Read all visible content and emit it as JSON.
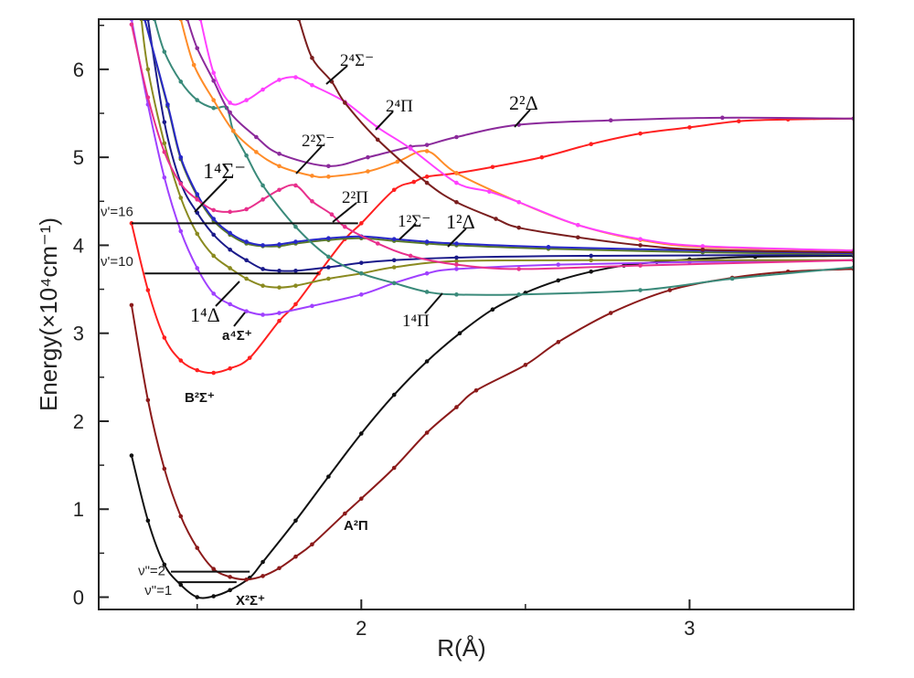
{
  "chart_data": {
    "type": "line",
    "xlabel": "R(Å)",
    "ylabel": "Energy(×10⁴cm⁻¹)",
    "xlim": [
      1.2,
      3.5
    ],
    "ylim": [
      -0.14,
      6.57
    ],
    "xticks": [
      {
        "value": 2,
        "label": "2"
      },
      {
        "value": 3,
        "label": "3"
      }
    ],
    "xminor": [
      1.5,
      2.5
    ],
    "yticks": [
      {
        "value": 0,
        "label": "0"
      },
      {
        "value": 1,
        "label": "1"
      },
      {
        "value": 2,
        "label": "2"
      },
      {
        "value": 3,
        "label": "3"
      },
      {
        "value": 4,
        "label": "4"
      },
      {
        "value": 5,
        "label": "5"
      },
      {
        "value": 6,
        "label": "6"
      }
    ],
    "yminor": [
      0.5,
      1.5,
      2.5,
      3.5,
      4.5,
      5.5,
      6.5
    ],
    "grid": false,
    "series": [
      {
        "name": "X²Σ⁺",
        "color": "#111111",
        "points": [
          [
            1.3,
            1.61
          ],
          [
            1.35,
            0.87
          ],
          [
            1.4,
            0.37
          ],
          [
            1.45,
            0.14
          ],
          [
            1.5,
            0.0
          ],
          [
            1.55,
            0.01
          ],
          [
            1.6,
            0.08
          ],
          [
            1.66,
            0.22
          ],
          [
            1.7,
            0.4
          ],
          [
            1.8,
            0.87
          ],
          [
            1.9,
            1.37
          ],
          [
            2.0,
            1.86
          ],
          [
            2.1,
            2.3
          ],
          [
            2.2,
            2.68
          ],
          [
            2.3,
            3.0
          ],
          [
            2.4,
            3.27
          ],
          [
            2.5,
            3.46
          ],
          [
            2.6,
            3.6
          ],
          [
            2.7,
            3.7
          ],
          [
            2.8,
            3.77
          ],
          [
            2.9,
            3.81
          ],
          [
            3.0,
            3.84
          ],
          [
            3.2,
            3.87
          ],
          [
            3.5,
            3.88
          ]
        ]
      },
      {
        "name": "A²Π",
        "color": "#8b1a1a",
        "points": [
          [
            1.3,
            3.32
          ],
          [
            1.35,
            2.24
          ],
          [
            1.4,
            1.46
          ],
          [
            1.45,
            0.92
          ],
          [
            1.5,
            0.56
          ],
          [
            1.55,
            0.32
          ],
          [
            1.6,
            0.23
          ],
          [
            1.65,
            0.2
          ],
          [
            1.7,
            0.24
          ],
          [
            1.75,
            0.33
          ],
          [
            1.8,
            0.46
          ],
          [
            1.85,
            0.6
          ],
          [
            1.95,
            0.95
          ],
          [
            2.0,
            1.12
          ],
          [
            2.1,
            1.47
          ],
          [
            2.2,
            1.87
          ],
          [
            2.29,
            2.16
          ],
          [
            2.35,
            2.35
          ],
          [
            2.5,
            2.64
          ],
          [
            2.6,
            2.9
          ],
          [
            2.76,
            3.23
          ],
          [
            2.94,
            3.49
          ],
          [
            3.13,
            3.63
          ],
          [
            3.3,
            3.7
          ],
          [
            3.5,
            3.73
          ]
        ]
      },
      {
        "name": "B²Σ⁺",
        "color": "#ff2020",
        "points": [
          [
            1.3,
            4.25
          ],
          [
            1.35,
            3.49
          ],
          [
            1.4,
            2.95
          ],
          [
            1.45,
            2.69
          ],
          [
            1.5,
            2.58
          ],
          [
            1.55,
            2.55
          ],
          [
            1.6,
            2.6
          ],
          [
            1.66,
            2.72
          ],
          [
            1.75,
            3.14
          ],
          [
            1.8,
            3.33
          ],
          [
            1.87,
            3.68
          ],
          [
            1.95,
            4.07
          ],
          [
            2.0,
            4.25
          ],
          [
            2.1,
            4.63
          ],
          [
            2.16,
            4.72
          ],
          [
            2.2,
            4.78
          ],
          [
            2.29,
            4.82
          ],
          [
            2.4,
            4.89
          ],
          [
            2.55,
            5.0
          ],
          [
            2.7,
            5.15
          ],
          [
            2.85,
            5.27
          ],
          [
            3.0,
            5.34
          ],
          [
            3.15,
            5.41
          ],
          [
            3.3,
            5.43
          ],
          [
            3.5,
            5.44
          ]
        ]
      },
      {
        "name": "a⁴Σ⁺",
        "color": "#a040ff",
        "points": [
          [
            1.3,
            6.57
          ],
          [
            1.35,
            5.6
          ],
          [
            1.4,
            4.77
          ],
          [
            1.45,
            4.16
          ],
          [
            1.5,
            3.74
          ],
          [
            1.55,
            3.45
          ],
          [
            1.6,
            3.33
          ],
          [
            1.65,
            3.25
          ],
          [
            1.7,
            3.21
          ],
          [
            1.75,
            3.23
          ],
          [
            1.85,
            3.31
          ],
          [
            2.0,
            3.44
          ],
          [
            2.1,
            3.57
          ],
          [
            2.2,
            3.68
          ],
          [
            2.29,
            3.73
          ],
          [
            2.6,
            3.78
          ],
          [
            3.0,
            3.81
          ],
          [
            3.5,
            3.83
          ]
        ]
      },
      {
        "name": "1⁴Δ",
        "color": "#8a8a20",
        "points": [
          [
            1.33,
            6.57
          ],
          [
            1.35,
            6.0
          ],
          [
            1.4,
            5.16
          ],
          [
            1.45,
            4.54
          ],
          [
            1.5,
            4.13
          ],
          [
            1.55,
            3.88
          ],
          [
            1.6,
            3.74
          ],
          [
            1.65,
            3.62
          ],
          [
            1.7,
            3.54
          ],
          [
            1.75,
            3.52
          ],
          [
            1.8,
            3.54
          ],
          [
            1.9,
            3.62
          ],
          [
            2.0,
            3.68
          ],
          [
            2.1,
            3.75
          ],
          [
            2.29,
            3.82
          ],
          [
            2.7,
            3.83
          ],
          [
            3.5,
            3.83
          ]
        ]
      },
      {
        "name": "1⁴Σ⁻",
        "color": "#1a1a8a",
        "points": [
          [
            1.35,
            6.57
          ],
          [
            1.4,
            5.4
          ],
          [
            1.45,
            4.71
          ],
          [
            1.5,
            4.37
          ],
          [
            1.55,
            4.12
          ],
          [
            1.6,
            3.95
          ],
          [
            1.65,
            3.83
          ],
          [
            1.7,
            3.73
          ],
          [
            1.75,
            3.71
          ],
          [
            1.8,
            3.71
          ],
          [
            1.9,
            3.75
          ],
          [
            2.0,
            3.8
          ],
          [
            2.1,
            3.83
          ],
          [
            2.29,
            3.86
          ],
          [
            2.7,
            3.88
          ],
          [
            3.5,
            3.89
          ]
        ]
      },
      {
        "name": "1²Δ",
        "color": "#5a7a2a",
        "points": [
          [
            1.34,
            6.57
          ],
          [
            1.41,
            5.58
          ],
          [
            1.45,
            4.98
          ],
          [
            1.5,
            4.56
          ],
          [
            1.55,
            4.28
          ],
          [
            1.6,
            4.12
          ],
          [
            1.65,
            4.02
          ],
          [
            1.7,
            3.99
          ],
          [
            1.75,
            3.99
          ],
          [
            1.8,
            4.02
          ],
          [
            1.9,
            4.06
          ],
          [
            2.0,
            4.08
          ],
          [
            2.1,
            4.05
          ],
          [
            2.2,
            4.02
          ],
          [
            2.29,
            4.0
          ],
          [
            2.57,
            3.96
          ],
          [
            3.04,
            3.92
          ],
          [
            3.5,
            3.9
          ]
        ]
      },
      {
        "name": "1²Σ⁻",
        "color": "#2828c8",
        "points": [
          [
            1.34,
            6.57
          ],
          [
            1.41,
            5.6
          ],
          [
            1.45,
            5.0
          ],
          [
            1.5,
            4.58
          ],
          [
            1.55,
            4.3
          ],
          [
            1.6,
            4.14
          ],
          [
            1.65,
            4.04
          ],
          [
            1.7,
            4.0
          ],
          [
            1.75,
            4.01
          ],
          [
            1.8,
            4.04
          ],
          [
            1.9,
            4.08
          ],
          [
            2.0,
            4.1
          ],
          [
            2.1,
            4.07
          ],
          [
            2.2,
            4.04
          ],
          [
            2.29,
            4.02
          ],
          [
            2.57,
            3.98
          ],
          [
            3.04,
            3.94
          ],
          [
            3.5,
            3.91
          ]
        ]
      },
      {
        "name": "2²Π",
        "color": "#e8308c",
        "points": [
          [
            1.3,
            6.51
          ],
          [
            1.35,
            5.68
          ],
          [
            1.4,
            5.06
          ],
          [
            1.45,
            4.7
          ],
          [
            1.5,
            4.52
          ],
          [
            1.55,
            4.4
          ],
          [
            1.6,
            4.38
          ],
          [
            1.65,
            4.41
          ],
          [
            1.7,
            4.52
          ],
          [
            1.75,
            4.63
          ],
          [
            1.8,
            4.68
          ],
          [
            1.85,
            4.5
          ],
          [
            1.91,
            4.35
          ],
          [
            1.95,
            4.21
          ],
          [
            2.05,
            4.02
          ],
          [
            2.15,
            3.88
          ],
          [
            2.29,
            3.78
          ],
          [
            2.48,
            3.73
          ],
          [
            2.85,
            3.77
          ],
          [
            3.5,
            3.83
          ]
        ]
      },
      {
        "name": "1⁴Π",
        "color": "#3a8a7a",
        "points": [
          [
            1.37,
            6.57
          ],
          [
            1.4,
            6.2
          ],
          [
            1.45,
            5.86
          ],
          [
            1.5,
            5.65
          ],
          [
            1.55,
            5.56
          ],
          [
            1.59,
            5.56
          ],
          [
            1.61,
            5.3
          ],
          [
            1.65,
            5.02
          ],
          [
            1.7,
            4.68
          ],
          [
            1.8,
            4.21
          ],
          [
            1.9,
            3.87
          ],
          [
            2.0,
            3.68
          ],
          [
            2.1,
            3.57
          ],
          [
            2.2,
            3.47
          ],
          [
            2.29,
            3.44
          ],
          [
            2.48,
            3.44
          ],
          [
            2.85,
            3.49
          ],
          [
            3.13,
            3.62
          ],
          [
            3.5,
            3.75
          ]
        ]
      },
      {
        "name": "2²Σ⁻",
        "color": "#ff8c28",
        "points": [
          [
            1.45,
            6.57
          ],
          [
            1.49,
            6.05
          ],
          [
            1.55,
            5.65
          ],
          [
            1.61,
            5.3
          ],
          [
            1.68,
            5.06
          ],
          [
            1.75,
            4.9
          ],
          [
            1.85,
            4.79
          ],
          [
            1.9,
            4.78
          ],
          [
            2.02,
            4.84
          ],
          [
            2.11,
            4.95
          ],
          [
            2.2,
            5.07
          ],
          [
            2.29,
            4.82
          ],
          [
            2.48,
            4.49
          ],
          [
            2.66,
            4.23
          ],
          [
            2.85,
            4.06
          ],
          [
            3.04,
            3.98
          ],
          [
            3.5,
            3.94
          ]
        ]
      },
      {
        "name": "2²Δ",
        "color": "#8b2a9b",
        "points": [
          [
            1.47,
            6.57
          ],
          [
            1.5,
            6.24
          ],
          [
            1.55,
            5.87
          ],
          [
            1.6,
            5.51
          ],
          [
            1.68,
            5.23
          ],
          [
            1.75,
            5.04
          ],
          [
            1.9,
            4.9
          ],
          [
            2.02,
            5.0
          ],
          [
            2.15,
            5.12
          ],
          [
            2.2,
            5.14
          ],
          [
            2.29,
            5.23
          ],
          [
            2.48,
            5.37
          ],
          [
            2.76,
            5.42
          ],
          [
            3.1,
            5.45
          ],
          [
            3.5,
            5.44
          ]
        ]
      },
      {
        "name": "2⁴Π",
        "color": "#ff40ff",
        "points": [
          [
            1.51,
            6.57
          ],
          [
            1.55,
            5.96
          ],
          [
            1.6,
            5.62
          ],
          [
            1.65,
            5.65
          ],
          [
            1.7,
            5.77
          ],
          [
            1.75,
            5.88
          ],
          [
            1.8,
            5.91
          ],
          [
            1.85,
            5.82
          ],
          [
            1.95,
            5.63
          ],
          [
            2.05,
            5.34
          ],
          [
            2.15,
            5.1
          ],
          [
            2.29,
            4.71
          ],
          [
            2.39,
            4.61
          ],
          [
            2.48,
            4.49
          ],
          [
            2.66,
            4.23
          ],
          [
            2.85,
            4.07
          ],
          [
            3.04,
            3.99
          ],
          [
            3.5,
            3.94
          ]
        ]
      },
      {
        "name": "2⁴Σ⁻",
        "color": "#7a1e1e",
        "points": [
          [
            1.81,
            6.57
          ],
          [
            1.85,
            6.13
          ],
          [
            1.91,
            5.86
          ],
          [
            1.95,
            5.62
          ],
          [
            2.05,
            5.2
          ],
          [
            2.2,
            4.71
          ],
          [
            2.29,
            4.49
          ],
          [
            2.41,
            4.3
          ],
          [
            2.48,
            4.2
          ],
          [
            2.66,
            4.09
          ],
          [
            2.85,
            4.0
          ],
          [
            3.04,
            3.95
          ],
          [
            3.5,
            3.92
          ]
        ]
      }
    ],
    "levels": [
      {
        "label": "ν'=16",
        "energy": 4.25,
        "r_start": 1.3,
        "r_end": 1.99
      },
      {
        "label": "ν'=10",
        "energy": 3.68,
        "r_start": 1.34,
        "r_end": 1.87
      },
      {
        "label": "ν\"=2",
        "energy": 0.29,
        "r_start": 1.42,
        "r_end": 1.66
      },
      {
        "label": "ν\"=1",
        "energy": 0.17,
        "r_start": 1.44,
        "r_end": 1.62
      }
    ],
    "annotations": [
      "2⁴Σ⁻",
      "2⁴Π",
      "2²Δ",
      "2²Σ⁻",
      "1⁴Σ⁻",
      "2²Π",
      "1²Σ⁻",
      "1²Δ",
      "1⁴Δ",
      "a⁴Σ⁺",
      "1⁴Π",
      "B²Σ⁺",
      "A²Π",
      "X²Σ⁺"
    ]
  }
}
